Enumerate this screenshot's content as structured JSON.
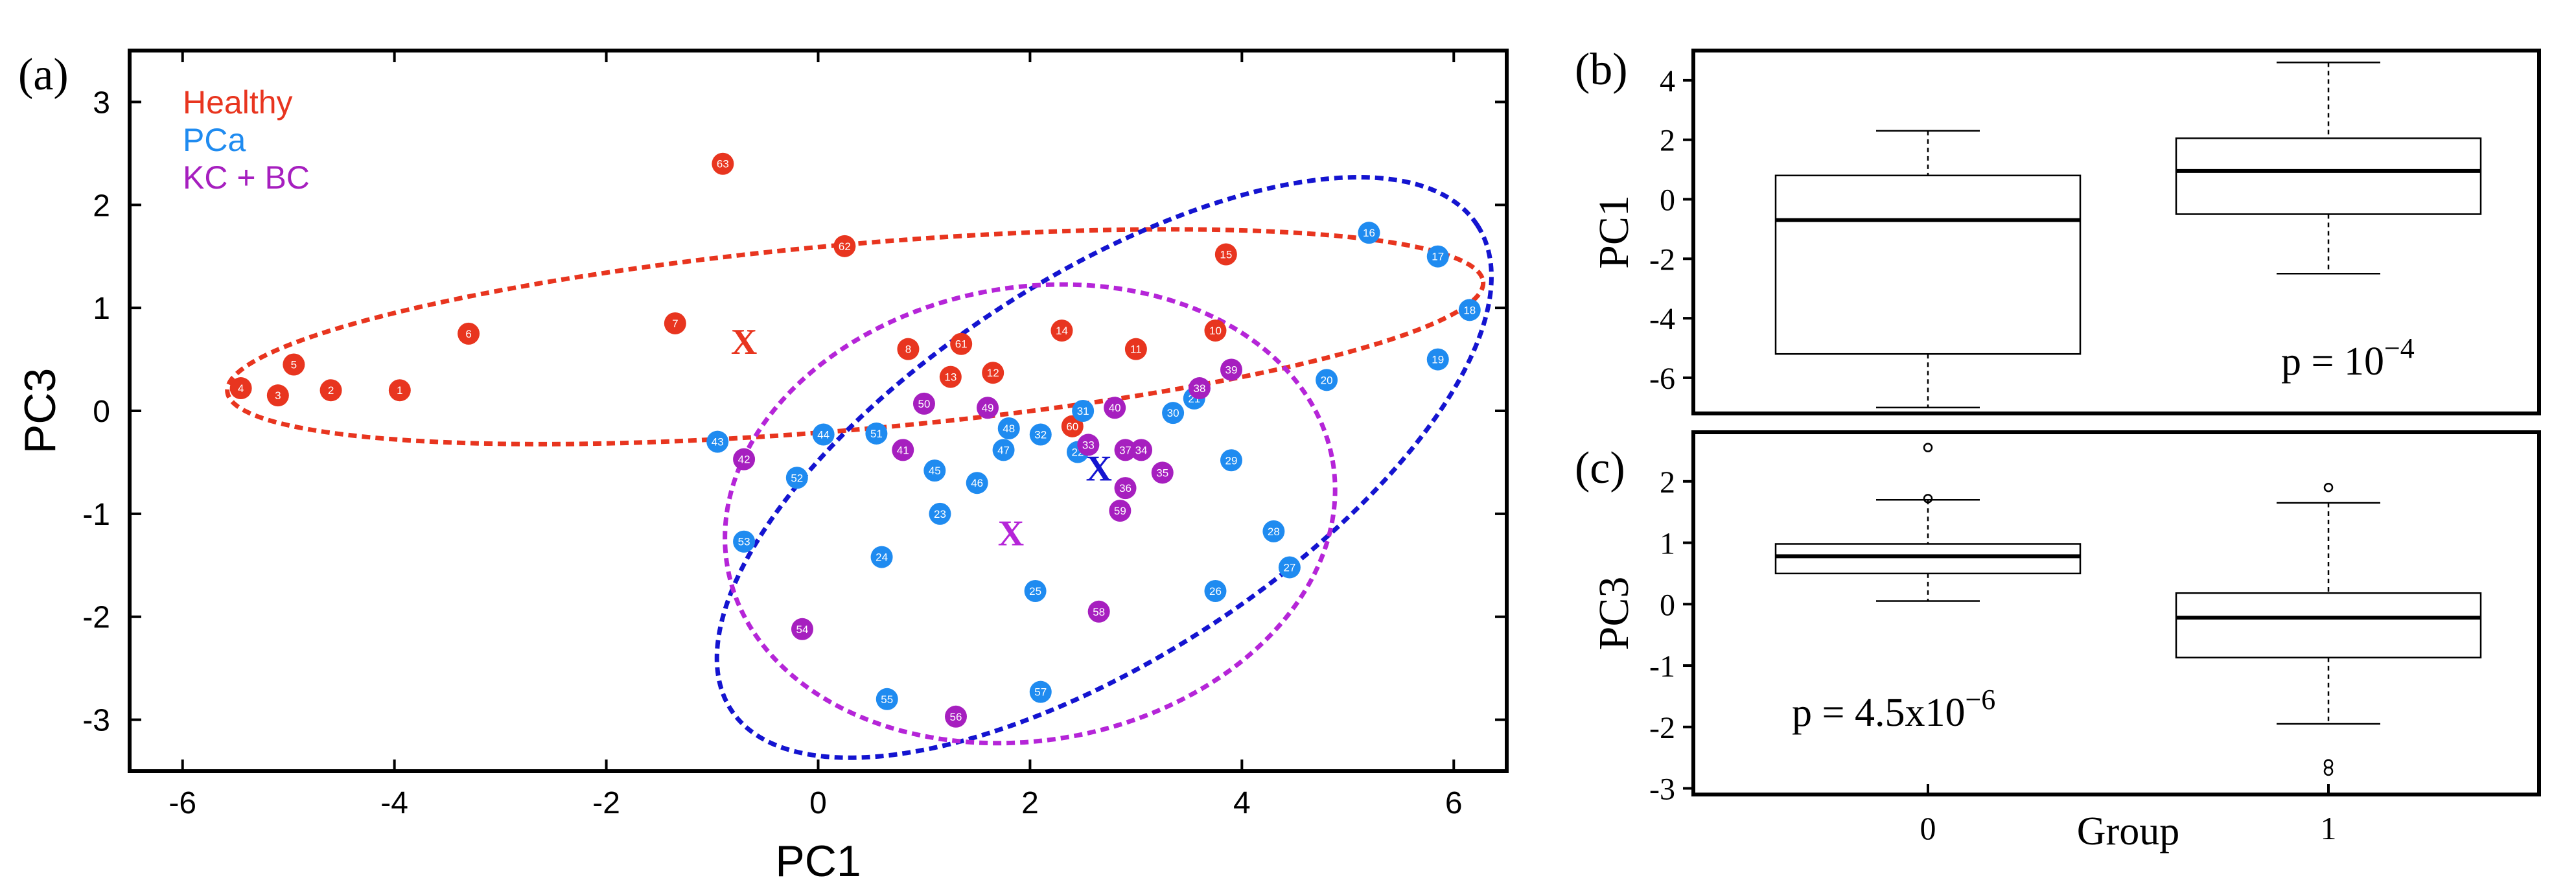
{
  "colors": {
    "healthy": "#e8351f",
    "pca": "#1f8bf0",
    "kcbc": "#a61fbf",
    "ellipse_blue": "#1414d0",
    "ellipse_purple": "#b525d8"
  },
  "chart_data": [
    {
      "panel": "(a)",
      "type": "scatter",
      "xlabel": "PC1",
      "ylabel": "PC3",
      "xlim": [
        -6.5,
        6.5
      ],
      "ylim": [
        -3.5,
        3.5
      ],
      "xticks": [
        "-6",
        "-4",
        "-2",
        "0",
        "2",
        "4",
        "6"
      ],
      "yticks": [
        "3",
        "2",
        "1",
        "0",
        "-1",
        "-2",
        "-3"
      ],
      "legend": [
        "Healthy",
        "PCa",
        "KC + BC"
      ],
      "legend_position": "top-left",
      "centroid_marker": "X",
      "centroids": [
        {
          "group": "Healthy",
          "x": -0.7,
          "y": 0.68
        },
        {
          "group": "PCa",
          "x": 2.65,
          "y": -0.55
        },
        {
          "group": "KC + BC",
          "x": 1.82,
          "y": -1.18
        }
      ],
      "ellipses": [
        {
          "group": "Healthy",
          "cx": 0.35,
          "cy": 0.72,
          "rx": 5.95,
          "ry": 0.9,
          "angle_deg": 5
        },
        {
          "group": "PCa",
          "cx": 2.7,
          "cy": -0.55,
          "rx": 4.2,
          "ry": 1.85,
          "angle_deg": 33
        },
        {
          "group": "KC + BC",
          "cx": 2.0,
          "cy": -1.0,
          "rx": 2.9,
          "ry": 2.2,
          "angle_deg": 10
        }
      ],
      "series": [
        {
          "name": "Healthy",
          "points": [
            {
              "id": "1",
              "x": -3.95,
              "y": 0.2
            },
            {
              "id": "2",
              "x": -4.6,
              "y": 0.2
            },
            {
              "id": "3",
              "x": -5.1,
              "y": 0.15
            },
            {
              "id": "4",
              "x": -5.45,
              "y": 0.22
            },
            {
              "id": "5",
              "x": -4.95,
              "y": 0.45
            },
            {
              "id": "6",
              "x": -3.3,
              "y": 0.75
            },
            {
              "id": "7",
              "x": -1.35,
              "y": 0.85
            },
            {
              "id": "63",
              "x": -0.9,
              "y": 2.4
            },
            {
              "id": "62",
              "x": 0.25,
              "y": 1.6
            },
            {
              "id": "15",
              "x": 3.85,
              "y": 1.52
            },
            {
              "id": "14",
              "x": 2.3,
              "y": 0.78
            },
            {
              "id": "10",
              "x": 3.75,
              "y": 0.78
            },
            {
              "id": "11",
              "x": 3.0,
              "y": 0.6
            },
            {
              "id": "61",
              "x": 1.35,
              "y": 0.65
            },
            {
              "id": "8",
              "x": 0.85,
              "y": 0.6
            },
            {
              "id": "13",
              "x": 1.25,
              "y": 0.33
            },
            {
              "id": "12",
              "x": 1.65,
              "y": 0.37
            },
            {
              "id": "60",
              "x": 2.4,
              "y": -0.15
            }
          ]
        },
        {
          "name": "PCa",
          "points": [
            {
              "id": "16",
              "x": 5.2,
              "y": 1.73
            },
            {
              "id": "17",
              "x": 5.85,
              "y": 1.5
            },
            {
              "id": "18",
              "x": 6.15,
              "y": 0.98
            },
            {
              "id": "19",
              "x": 5.85,
              "y": 0.5
            },
            {
              "id": "20",
              "x": 4.8,
              "y": 0.3
            },
            {
              "id": "21",
              "x": 3.55,
              "y": 0.12
            },
            {
              "id": "30",
              "x": 3.35,
              "y": -0.02
            },
            {
              "id": "29",
              "x": 3.9,
              "y": -0.48
            },
            {
              "id": "28",
              "x": 4.3,
              "y": -1.17
            },
            {
              "id": "27",
              "x": 4.45,
              "y": -1.52
            },
            {
              "id": "26",
              "x": 3.75,
              "y": -1.75
            },
            {
              "id": "25",
              "x": 2.05,
              "y": -1.75
            },
            {
              "id": "24",
              "x": 0.6,
              "y": -1.42
            },
            {
              "id": "23",
              "x": 1.15,
              "y": -1.0
            },
            {
              "id": "43",
              "x": -0.95,
              "y": -0.3
            },
            {
              "id": "44",
              "x": 0.05,
              "y": -0.23
            },
            {
              "id": "51",
              "x": 0.55,
              "y": -0.22
            },
            {
              "id": "52",
              "x": -0.2,
              "y": -0.65
            },
            {
              "id": "53",
              "x": -0.7,
              "y": -1.27
            },
            {
              "id": "45",
              "x": 1.1,
              "y": -0.58
            },
            {
              "id": "46",
              "x": 1.5,
              "y": -0.7
            },
            {
              "id": "47",
              "x": 1.75,
              "y": -0.38
            },
            {
              "id": "48",
              "x": 1.8,
              "y": -0.17
            },
            {
              "id": "32",
              "x": 2.1,
              "y": -0.23
            },
            {
              "id": "31",
              "x": 2.5,
              "y": 0.0
            },
            {
              "id": "22",
              "x": 2.45,
              "y": -0.4
            },
            {
              "id": "55",
              "x": 0.65,
              "y": -2.8
            },
            {
              "id": "57",
              "x": 2.1,
              "y": -2.73
            }
          ]
        },
        {
          "name": "KC + BC",
          "points": [
            {
              "id": "50",
              "x": 1.0,
              "y": 0.07
            },
            {
              "id": "49",
              "x": 1.6,
              "y": 0.03
            },
            {
              "id": "40",
              "x": 2.8,
              "y": 0.03
            },
            {
              "id": "38",
              "x": 3.6,
              "y": 0.22
            },
            {
              "id": "39",
              "x": 3.9,
              "y": 0.4
            },
            {
              "id": "41",
              "x": 0.8,
              "y": -0.38
            },
            {
              "id": "42",
              "x": -0.7,
              "y": -0.47
            },
            {
              "id": "33",
              "x": 2.55,
              "y": -0.33
            },
            {
              "id": "37",
              "x": 2.9,
              "y": -0.38
            },
            {
              "id": "34",
              "x": 3.05,
              "y": -0.38
            },
            {
              "id": "35",
              "x": 3.25,
              "y": -0.6
            },
            {
              "id": "36",
              "x": 2.9,
              "y": -0.75
            },
            {
              "id": "59",
              "x": 2.85,
              "y": -0.97
            },
            {
              "id": "58",
              "x": 2.65,
              "y": -1.95
            },
            {
              "id": "54",
              "x": -0.15,
              "y": -2.12
            },
            {
              "id": "56",
              "x": 1.3,
              "y": -2.97
            }
          ]
        }
      ]
    },
    {
      "panel": "(b)",
      "type": "boxplot",
      "ylabel": "PC1",
      "ylim": [
        -7.2,
        5
      ],
      "yticks": [
        "4",
        "2",
        "0",
        "-2",
        "-4",
        "-6"
      ],
      "annotation_base": "p = 10",
      "annotation_exp": "−4",
      "boxes": [
        {
          "group": "0",
          "whisker_low": -7.0,
          "q1": -5.2,
          "median": -0.7,
          "q3": 0.8,
          "whisker_high": 2.3,
          "outliers": []
        },
        {
          "group": "1",
          "whisker_low": -2.5,
          "q1": -0.5,
          "median": 0.95,
          "q3": 2.05,
          "whisker_high": 4.6,
          "outliers": []
        }
      ]
    },
    {
      "panel": "(c)",
      "type": "boxplot",
      "ylabel": "PC3",
      "xlabel": "Group",
      "ylim": [
        -3.1,
        2.8
      ],
      "yticks": [
        "2",
        "1",
        "0",
        "-1",
        "-2",
        "-3"
      ],
      "xticks": [
        "0",
        "1"
      ],
      "annotation_base": "p = 4.5x10",
      "annotation_exp": "−6",
      "boxes": [
        {
          "group": "0",
          "whisker_low": 0.05,
          "q1": 0.5,
          "median": 0.78,
          "q3": 0.98,
          "whisker_high": 1.7,
          "outliers": [
            1.72,
            2.55
          ]
        },
        {
          "group": "1",
          "whisker_low": -1.95,
          "q1": -0.87,
          "median": -0.22,
          "q3": 0.18,
          "whisker_high": 1.65,
          "outliers": [
            1.9,
            -2.6,
            -2.72
          ]
        }
      ]
    }
  ]
}
